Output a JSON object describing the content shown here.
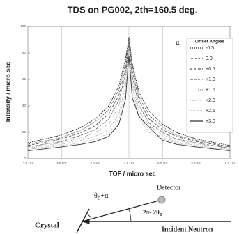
{
  "chart_data": {
    "type": "line",
    "title": "TDS on PG002, 2th=160.5 deg.",
    "xlabel": "TOF / micro sec",
    "ylabel": "Intensity / micro sec",
    "legend_symbol": "α:",
    "legend_title": "Offset Angles",
    "legend_position": "upper right",
    "grid": "x",
    "x": [
      30000,
      35000,
      38000,
      40000,
      42000,
      43500,
      44500,
      45000,
      45500,
      46500,
      48000,
      50000,
      52000,
      55000,
      60000
    ],
    "xlim": [
      30000,
      60000
    ],
    "xticks": [
      {
        "value": 30000,
        "label": "3.0 10⁴"
      },
      {
        "value": 35000,
        "label": "3.5 10⁴"
      },
      {
        "value": 40000,
        "label": "4.0 10⁴"
      },
      {
        "value": 45000,
        "label": "4.5 10⁴"
      },
      {
        "value": 50000,
        "label": "5.0 10⁴"
      },
      {
        "value": 55000,
        "label": "5.5 10⁴"
      },
      {
        "value": 60000,
        "label": "6.0 10⁴"
      }
    ],
    "ylim": [
      0,
      100
    ],
    "yticks": [
      0,
      20,
      40,
      60,
      80,
      100
    ],
    "series": [
      {
        "name": "-0.5",
        "color": "#222222",
        "dash": "2,1",
        "values": [
          12,
          18,
          24,
          30,
          40,
          55,
          75,
          92,
          72,
          50,
          36,
          26,
          20,
          15,
          10
        ]
      },
      {
        "name": "0.0",
        "color": "#444444",
        "dash": "1,1",
        "values": [
          11,
          16,
          22,
          28,
          37,
          52,
          72,
          90,
          70,
          47,
          33,
          24,
          18,
          14,
          9
        ]
      },
      {
        "name": "+0.5",
        "color": "#555555",
        "dash": "4,2",
        "values": [
          10,
          15,
          20,
          25,
          34,
          48,
          68,
          88,
          66,
          44,
          30,
          22,
          17,
          13,
          9
        ]
      },
      {
        "name": "+1.0",
        "color": "#666666",
        "dash": "3,1,1,1",
        "values": [
          9,
          13,
          18,
          22,
          30,
          44,
          64,
          86,
          62,
          40,
          27,
          20,
          15,
          12,
          8
        ]
      },
      {
        "name": "+1.5",
        "color": "#888888",
        "dash": "1,2",
        "values": [
          8,
          12,
          16,
          20,
          26,
          40,
          60,
          84,
          58,
          36,
          25,
          18,
          14,
          11,
          8
        ]
      },
      {
        "name": "+2.0",
        "color": "#aaaaaa",
        "dash": "2,2",
        "values": [
          7,
          11,
          14,
          17,
          22,
          34,
          55,
          82,
          54,
          32,
          22,
          16,
          13,
          10,
          7
        ]
      },
      {
        "name": "+2.5",
        "color": "#c4c4c4",
        "dash": "3,2",
        "values": [
          7,
          10,
          12,
          15,
          19,
          30,
          50,
          80,
          50,
          30,
          20,
          15,
          12,
          9,
          7
        ]
      },
      {
        "name": "+3.0",
        "color": "#333333",
        "dash": "none",
        "values": [
          6,
          9,
          11,
          13,
          17,
          26,
          45,
          78,
          46,
          32,
          24,
          14,
          11,
          9,
          6
        ]
      }
    ]
  },
  "diagram": {
    "detector": "Detector",
    "angle1": {
      "main": "θ",
      "sub": "B",
      "rest": "+α"
    },
    "angle2": {
      "main": "2π- 2θ",
      "sub": "B"
    },
    "crystal": "Crystal",
    "incident": "Incident Neutron"
  }
}
